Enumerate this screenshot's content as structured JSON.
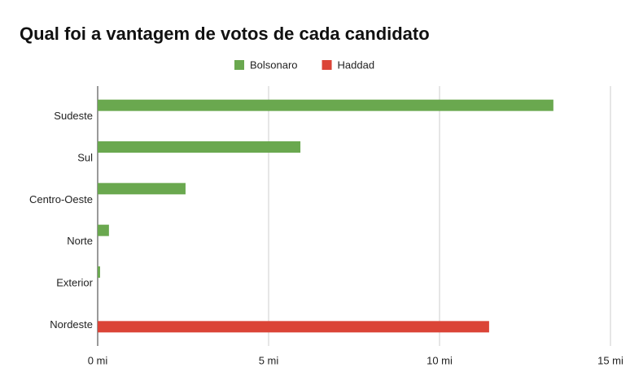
{
  "chart_data": {
    "type": "hbar",
    "title": "Qual foi a vantagem de votos de cada candidato",
    "categories": [
      "Sudeste",
      "Sul",
      "Centro-Oeste",
      "Norte",
      "Exterior",
      "Nordeste"
    ],
    "series": [
      {
        "name": "Bolsonaro",
        "color": "#6aa84f",
        "values": [
          13.33,
          5.93,
          2.57,
          0.33,
          0.07,
          null
        ]
      },
      {
        "name": "Haddad",
        "color": "#db4437",
        "values": [
          null,
          null,
          null,
          null,
          null,
          11.45
        ]
      }
    ],
    "xlim": [
      0,
      15
    ],
    "xticks": [
      {
        "value": 0,
        "label": "0 mi"
      },
      {
        "value": 5,
        "label": "5 mi"
      },
      {
        "value": 10,
        "label": "10 mi"
      },
      {
        "value": 15,
        "label": "15 mi"
      }
    ],
    "grid": true,
    "legend": "top"
  }
}
